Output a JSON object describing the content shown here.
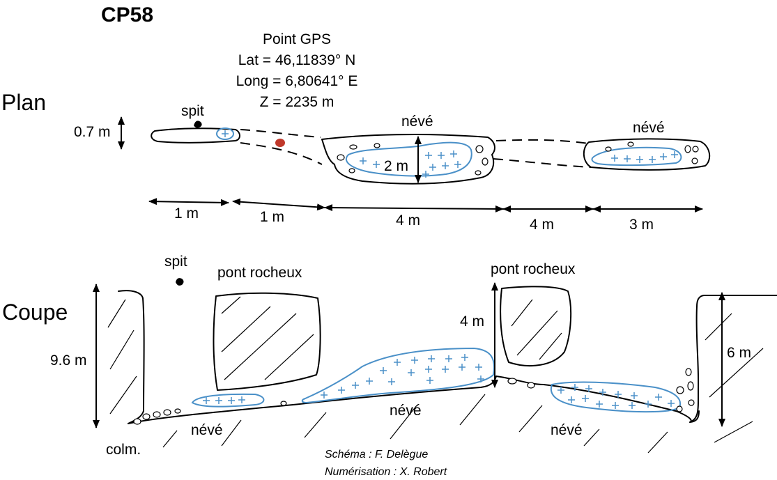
{
  "title": "CP58",
  "plan": {
    "section_label": "Plan",
    "gps": {
      "heading": "Point GPS",
      "lat": "Lat = 46,11839° N",
      "long": "Long = 6,80641° E",
      "z": "Z = 2235 m"
    },
    "spit_label": "spit",
    "width_label": "0.7 m",
    "neve_labels": [
      "névé",
      "névé"
    ],
    "depth_label": "2 m",
    "distances": [
      "1 m",
      "1 m",
      "4 m",
      "4 m",
      "3 m"
    ]
  },
  "coupe": {
    "section_label": "Coupe",
    "spit_label": "spit",
    "bridge_labels": [
      "pont rocheux",
      "pont rocheux"
    ],
    "heights": [
      "9.6 m",
      "4 m",
      "6 m"
    ],
    "neve_labels": [
      "névé",
      "névé",
      "névé"
    ],
    "colm_label": "colm."
  },
  "credits": {
    "schema": "Schéma : F. Delègue",
    "numerisation": "Numérisation : X. Robert"
  },
  "colors": {
    "ice": "#4a90c8",
    "gps_point": "#c0392b",
    "ink": "#000000"
  }
}
